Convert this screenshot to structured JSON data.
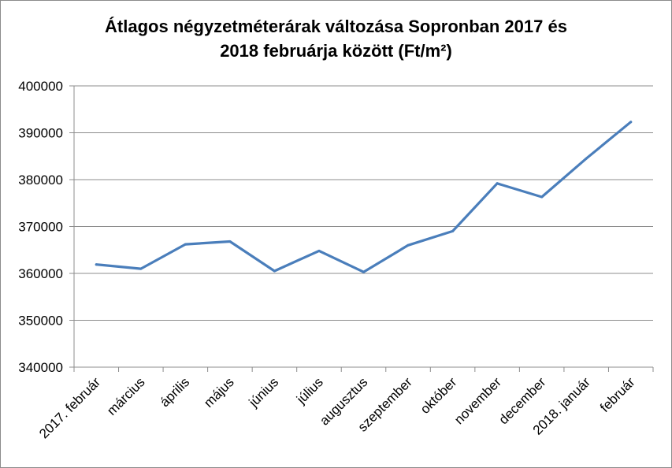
{
  "chart_data": {
    "type": "line",
    "title_lines": [
      "Átlagos négyzetméterárak változása Sopronban 2017 és",
      "2018 februárja között (Ft/m²)"
    ],
    "categories": [
      "2017. február",
      "március",
      "április",
      "május",
      "június",
      "július",
      "augusztus",
      "szeptember",
      "október",
      "november",
      "december",
      "2018. január",
      "február"
    ],
    "series": [
      {
        "values": [
          361900,
          361000,
          366200,
          366800,
          360500,
          364800,
          360300,
          366000,
          369000,
          379200,
          376300,
          384500,
          392300
        ],
        "color": "#4a7ebb"
      }
    ],
    "ylim": [
      340000,
      400000
    ],
    "yticks": [
      "340000",
      "350000",
      "360000",
      "370000",
      "380000",
      "390000",
      "400000"
    ],
    "grid": true,
    "legend": "none"
  }
}
